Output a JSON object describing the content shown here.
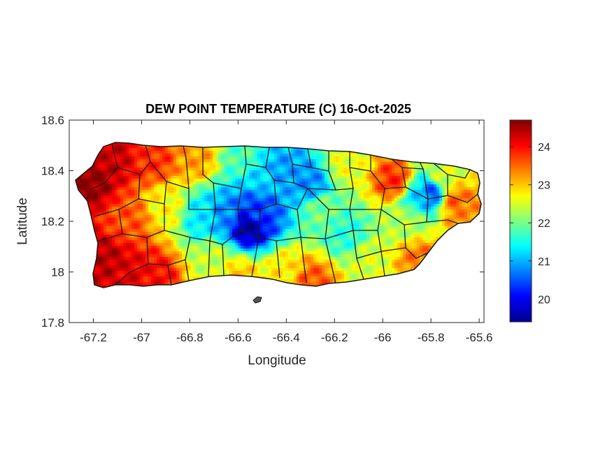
{
  "chart_data": {
    "type": "heatmap",
    "title": "DEW POINT TEMPERATURE (C) 16-Oct-2025",
    "xlabel": "Longitude",
    "ylabel": "Latitude",
    "xlim": [
      -67.3,
      -65.58
    ],
    "ylim": [
      17.8,
      18.6
    ],
    "xticks": [
      -67.2,
      -67,
      -66.8,
      -66.6,
      -66.4,
      -66.2,
      -66,
      -65.8,
      -65.6
    ],
    "xtick_labels": [
      "-67.2",
      "-67",
      "-66.8",
      "-66.6",
      "-66.4",
      "-66.2",
      "-66",
      "-65.8",
      "-65.6"
    ],
    "yticks": [
      17.8,
      18,
      18.2,
      18.4,
      18.6
    ],
    "ytick_labels": [
      "17.8",
      "18",
      "18.2",
      "18.4",
      "18.6"
    ],
    "colorbar": {
      "colormap": "jet",
      "clim": [
        19.4,
        24.7
      ],
      "ticks": [
        20,
        21,
        22,
        23,
        24
      ],
      "tick_labels": [
        "20",
        "21",
        "22",
        "23",
        "24"
      ]
    },
    "grid": false,
    "field_description_points": [
      {
        "lon": -67.22,
        "lat": 18.36,
        "value": 24.6
      },
      {
        "lon": -67.12,
        "lat": 18.46,
        "value": 24.3
      },
      {
        "lon": -67.15,
        "lat": 18.05,
        "value": 24.4
      },
      {
        "lon": -67.05,
        "lat": 17.99,
        "value": 24.2
      },
      {
        "lon": -66.95,
        "lat": 17.98,
        "value": 24.0
      },
      {
        "lon": -67.05,
        "lat": 18.2,
        "value": 23.6
      },
      {
        "lon": -66.95,
        "lat": 18.45,
        "value": 23.8
      },
      {
        "lon": -66.9,
        "lat": 18.25,
        "value": 22.7
      },
      {
        "lon": -66.75,
        "lat": 18.22,
        "value": 21.3
      },
      {
        "lon": -66.78,
        "lat": 18.45,
        "value": 23.2
      },
      {
        "lon": -66.65,
        "lat": 18.22,
        "value": 20.8
      },
      {
        "lon": -66.56,
        "lat": 18.18,
        "value": 19.6
      },
      {
        "lon": -66.52,
        "lat": 18.24,
        "value": 20.4
      },
      {
        "lon": -66.5,
        "lat": 18.38,
        "value": 21.2
      },
      {
        "lon": -66.42,
        "lat": 18.4,
        "value": 20.9
      },
      {
        "lon": -66.3,
        "lat": 18.35,
        "value": 20.8
      },
      {
        "lon": -66.58,
        "lat": 18.45,
        "value": 21.8
      },
      {
        "lon": -66.7,
        "lat": 18.05,
        "value": 22.4
      },
      {
        "lon": -66.6,
        "lat": 17.98,
        "value": 23.0
      },
      {
        "lon": -66.4,
        "lat": 18.0,
        "value": 22.8
      },
      {
        "lon": -66.3,
        "lat": 17.96,
        "value": 23.6
      },
      {
        "lon": -66.25,
        "lat": 18.25,
        "value": 22.0
      },
      {
        "lon": -66.15,
        "lat": 18.15,
        "value": 21.6
      },
      {
        "lon": -66.15,
        "lat": 18.42,
        "value": 22.6
      },
      {
        "lon": -66.05,
        "lat": 18.05,
        "value": 22.5
      },
      {
        "lon": -65.95,
        "lat": 18.36,
        "value": 23.8
      },
      {
        "lon": -65.9,
        "lat": 18.2,
        "value": 22.3
      },
      {
        "lon": -65.85,
        "lat": 18.3,
        "value": 21.2
      },
      {
        "lon": -65.8,
        "lat": 18.31,
        "value": 20.5
      },
      {
        "lon": -65.75,
        "lat": 18.38,
        "value": 22.5
      },
      {
        "lon": -65.7,
        "lat": 18.28,
        "value": 23.5
      },
      {
        "lon": -65.85,
        "lat": 18.05,
        "value": 23.4
      },
      {
        "lon": -65.65,
        "lat": 18.2,
        "value": 23.3
      }
    ]
  }
}
